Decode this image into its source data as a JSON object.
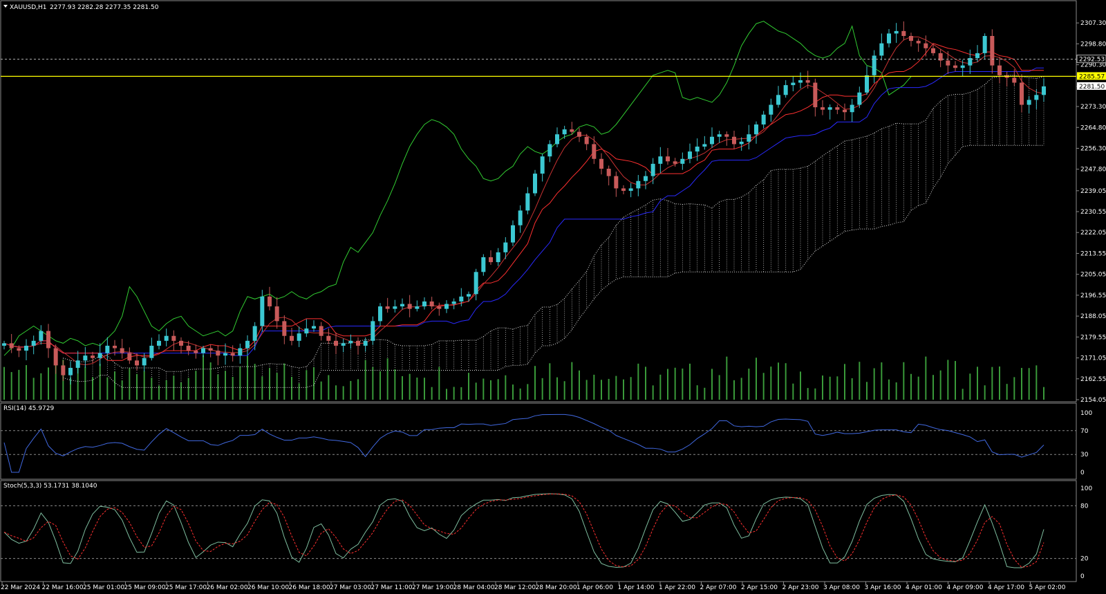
{
  "main_header": {
    "symbol": "XAUUSD,H1",
    "ohlc": "2277.93 2282.28 2277.35 2281.50"
  },
  "rsi_header": {
    "label": "RSI(14) 45.9729"
  },
  "stoch_header": {
    "label": "Stoch(5,3,3) 53.1731 38.1040"
  },
  "price_labels": {
    "line_upper": "2292.53",
    "line_yellow": "2285.57",
    "current": "2281.50"
  },
  "price_axis_ticks": [
    "2307.30",
    "2298.80",
    "2290.30",
    "2281.50",
    "2273.30",
    "2264.80",
    "2256.30",
    "2247.80",
    "2239.05",
    "2230.55",
    "2222.05",
    "2213.55",
    "2205.05",
    "2196.55",
    "2188.05",
    "2179.55",
    "2171.05",
    "2162.55",
    "2154.05"
  ],
  "rsi_axis_ticks": [
    "100",
    "70",
    "30",
    "0"
  ],
  "stoch_axis_ticks": [
    "100",
    "80",
    "20",
    "0"
  ],
  "time_labels": [
    "22 Mar 2024",
    "22 Mar 16:00",
    "25 Mar 01:00",
    "25 Mar 09:00",
    "25 Mar 17:00",
    "26 Mar 02:00",
    "26 Mar 10:00",
    "26 Mar 18:00",
    "27 Mar 03:00",
    "27 Mar 11:00",
    "27 Mar 19:00",
    "28 Mar 04:00",
    "28 Mar 12:00",
    "28 Mar 20:00",
    "1 Apr 06:00",
    "1 Apr 14:00",
    "1 Apr 22:00",
    "2 Apr 07:00",
    "2 Apr 15:00",
    "2 Apr 23:00",
    "3 Apr 08:00",
    "3 Apr 16:00",
    "4 Apr 01:00",
    "4 Apr 09:00",
    "4 Apr 17:00",
    "5 Apr 02:00"
  ],
  "colors": {
    "background": "#000000",
    "bull_candle": "#3cc8d2",
    "bear_candle": "#c85a5a",
    "yellow_line": "#ffff00",
    "dashed_line": "#b4b4b4",
    "rsi_line": "#4169e1",
    "stoch_main": "#7fbfa0",
    "stoch_signal": "#ff3030",
    "volume": "#3a9a3a",
    "chikou": "#32cd32",
    "tenkan": "#ff3030",
    "kijun": "#2a2aff"
  },
  "chart_data": {
    "type": "candlestick",
    "symbol": "XAUUSD",
    "timeframe": "H1",
    "y_range": [
      2154.05,
      2311.0
    ],
    "horizontal_levels": [
      2292.53,
      2285.57
    ],
    "last_close": 2281.5,
    "close_series": [
      2177,
      2175,
      2174,
      2176,
      2178,
      2182,
      2175,
      2168,
      2164,
      2167,
      2170,
      2172,
      2171,
      2173,
      2176,
      2175,
      2173,
      2170,
      2168,
      2171,
      2176,
      2178,
      2180,
      2178,
      2176,
      2174,
      2173,
      2175,
      2174,
      2172,
      2173,
      2172,
      2175,
      2178,
      2184,
      2196,
      2192,
      2186,
      2180,
      2178,
      2181,
      2183,
      2184,
      2180,
      2178,
      2176,
      2177,
      2178,
      2176,
      2178,
      2186,
      2192,
      2191,
      2192,
      2193,
      2191,
      2192,
      2194,
      2192,
      2191,
      2193,
      2194,
      2196,
      2197,
      2206,
      2212,
      2210,
      2214,
      2218,
      2225,
      2231,
      2238,
      2246,
      2253,
      2258,
      2262,
      2264,
      2263,
      2261,
      2258,
      2252,
      2248,
      2245,
      2240,
      2239,
      2240,
      2243,
      2245,
      2250,
      2253,
      2251,
      2250,
      2252,
      2255,
      2257,
      2258,
      2261,
      2262,
      2261,
      2258,
      2259,
      2262,
      2266,
      2270,
      2274,
      2278,
      2282,
      2283,
      2284,
      2283,
      2273,
      2272,
      2273,
      2272,
      2271,
      2274,
      2279,
      2286,
      2294,
      2299,
      2303,
      2304,
      2302,
      2300,
      2299,
      2297,
      2295,
      2292,
      2290,
      2289,
      2290,
      2293,
      2295,
      2302,
      2290,
      2286,
      2285,
      2283,
      2274,
      2276,
      2278,
      2281.5
    ],
    "rsi": {
      "period": 14,
      "last": 45.9729,
      "levels": [
        70,
        30
      ]
    },
    "stochastic": {
      "params": "5,3,3",
      "main": 53.1731,
      "signal": 38.104,
      "levels": [
        80,
        20
      ]
    }
  }
}
